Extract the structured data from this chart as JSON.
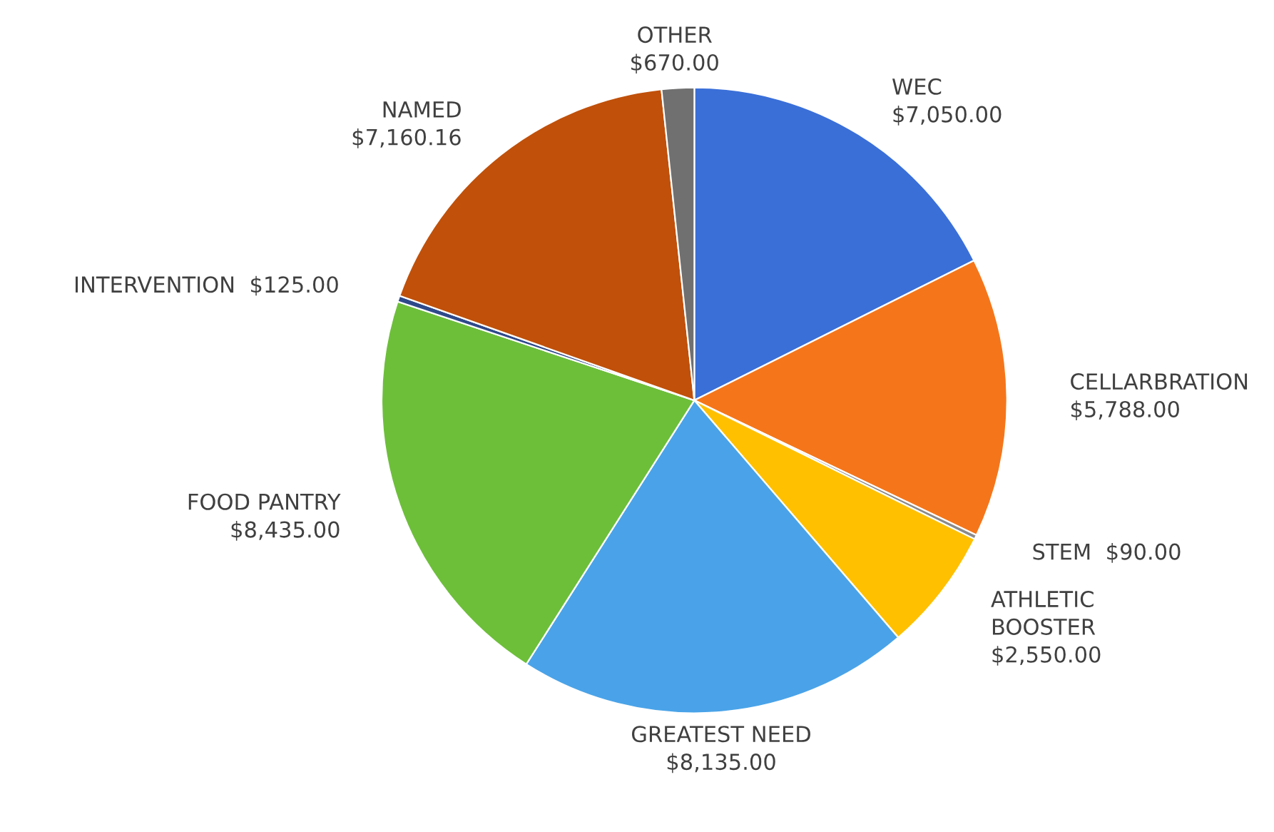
{
  "chart_data": {
    "type": "pie",
    "categories": [
      "WEC",
      "CELLARBRATION",
      "STEM",
      "ATHLETIC\nBOOSTER",
      "GREATEST NEED",
      "FOOD PANTRY",
      "INTERVENTION",
      "NAMED",
      "OTHER"
    ],
    "values": [
      7050,
      5788,
      90,
      2550,
      8135,
      8435,
      125,
      7160.16,
      670
    ],
    "value_labels": [
      "$7,050.00",
      "$5,788.00",
      "$90.00",
      "$2,550.00",
      "$8,135.00",
      "$8,435.00",
      "$125.00",
      "$7,160.16",
      "$670.00"
    ],
    "colors": [
      "#3a6fd8",
      "#f5761a",
      "#8a8a8a",
      "#ffc000",
      "#4aa3e8",
      "#6dbf3a",
      "#2e4a8a",
      "#c0500a",
      "#707070"
    ]
  }
}
